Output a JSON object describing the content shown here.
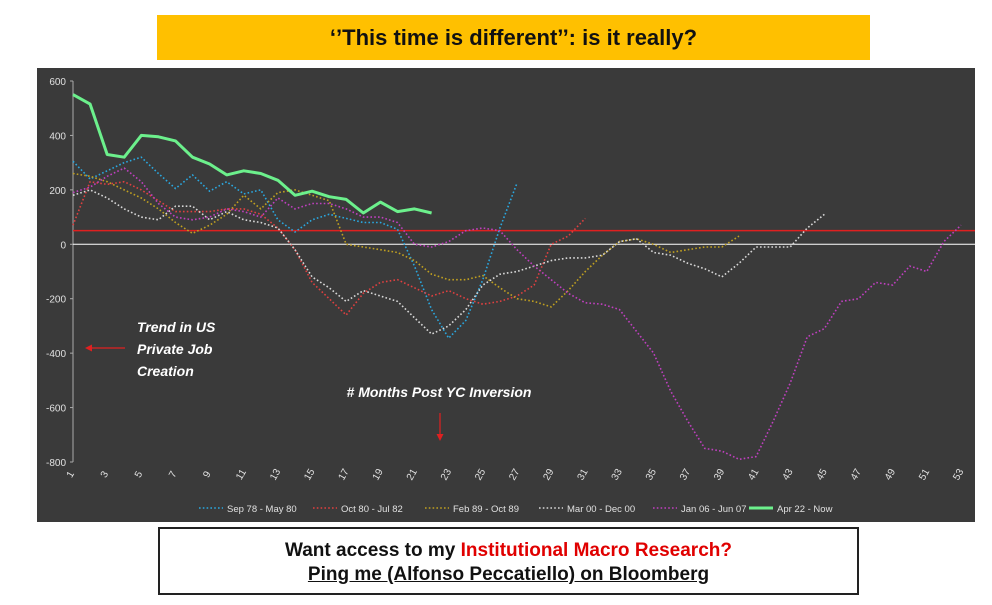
{
  "title": "‘’This time is different’’: is it really?",
  "cta": {
    "prefix": "Want access to my ",
    "highlight": "Institutional Macro Research?",
    "line2": "Ping me (Alfonso Peccatiello) on Bloomberg"
  },
  "colors": {
    "panel_bg": "#3a3a3a",
    "banner": "#ffc000",
    "zero_line": "#ffffff",
    "reference_line": "#e02020",
    "annotation_arrow": "#e02020",
    "highlight_text": "#e00000"
  },
  "chart_data": {
    "type": "line",
    "title": "",
    "xlabel": "",
    "ylabel": "",
    "ylim": [
      -800,
      600
    ],
    "xlim": [
      1,
      53
    ],
    "yticks": [
      600,
      400,
      200,
      0,
      -200,
      -400,
      -600,
      -800
    ],
    "xticks": [
      1,
      3,
      5,
      7,
      9,
      11,
      13,
      15,
      17,
      19,
      21,
      23,
      25,
      27,
      29,
      31,
      33,
      35,
      37,
      39,
      41,
      43,
      45,
      47,
      49,
      51,
      53
    ],
    "grid": false,
    "legend_position": "bottom",
    "reference_line": {
      "y": 50,
      "color": "#e02020"
    },
    "annotations": [
      {
        "text": "Trend in US Private Job Creation",
        "lines": [
          "Trend in US",
          "Private Job",
          "Creation"
        ]
      },
      {
        "text": "# Months Post YC Inversion"
      }
    ],
    "series": [
      {
        "name": "Sep 78 - May 80",
        "color": "#2aa8e0",
        "style": "dotted",
        "x": [
          1,
          2,
          3,
          4,
          5,
          6,
          7,
          8,
          9,
          10,
          11,
          12,
          13,
          14,
          15,
          16,
          17,
          18,
          19,
          20,
          21,
          22,
          23,
          24,
          25,
          26,
          27
        ],
        "values": [
          305,
          240,
          270,
          300,
          320,
          260,
          205,
          255,
          195,
          230,
          185,
          200,
          90,
          45,
          90,
          110,
          95,
          80,
          80,
          55,
          -80,
          -240,
          -345,
          -280,
          -130,
          60,
          225
        ]
      },
      {
        "name": "Oct 80 - Jul 82",
        "color": "#e04040",
        "style": "dotted",
        "x": [
          1,
          2,
          3,
          4,
          5,
          6,
          7,
          8,
          9,
          10,
          11,
          12,
          13,
          14,
          15,
          16,
          17,
          18,
          19,
          20,
          21,
          22,
          23,
          24,
          25,
          26,
          27,
          28,
          29,
          30,
          31
        ],
        "values": [
          70,
          230,
          220,
          230,
          200,
          160,
          120,
          120,
          120,
          130,
          130,
          110,
          60,
          -20,
          -140,
          -200,
          -260,
          -180,
          -140,
          -130,
          -160,
          -190,
          -170,
          -200,
          -220,
          -210,
          -190,
          -150,
          0,
          30,
          95
        ]
      },
      {
        "name": "Feb 89 - Oct 89",
        "color": "#c0a020",
        "style": "dotted",
        "x": [
          1,
          2,
          3,
          4,
          5,
          6,
          7,
          8,
          9,
          10,
          11,
          12,
          13,
          14,
          15,
          16,
          17,
          18,
          19,
          20,
          21,
          22,
          23,
          24,
          25,
          26,
          27,
          28,
          29,
          30,
          31,
          32,
          33,
          34,
          35,
          36,
          37,
          38,
          39,
          40
        ],
        "values": [
          260,
          250,
          230,
          200,
          170,
          130,
          80,
          40,
          70,
          110,
          180,
          130,
          190,
          200,
          180,
          160,
          0,
          -10,
          -20,
          -30,
          -60,
          -110,
          -130,
          -130,
          -115,
          -160,
          -200,
          -210,
          -230,
          -170,
          -100,
          -40,
          10,
          20,
          0,
          -30,
          -20,
          -10,
          -10,
          30
        ]
      },
      {
        "name": "Mar 00 - Dec 00",
        "color": "#d8d8d8",
        "style": "dotted",
        "x": [
          1,
          2,
          3,
          4,
          5,
          6,
          7,
          8,
          9,
          10,
          11,
          12,
          13,
          14,
          15,
          16,
          17,
          18,
          19,
          20,
          21,
          22,
          23,
          24,
          25,
          26,
          27,
          28,
          29,
          30,
          31,
          32,
          33,
          34,
          35,
          36,
          37,
          38,
          39,
          40,
          41,
          42,
          43,
          44,
          45
        ],
        "values": [
          180,
          200,
          170,
          130,
          100,
          90,
          140,
          140,
          90,
          120,
          90,
          80,
          60,
          -20,
          -120,
          -160,
          -210,
          -170,
          -190,
          -210,
          -270,
          -330,
          -300,
          -240,
          -150,
          -110,
          -100,
          -80,
          -60,
          -50,
          -50,
          -40,
          10,
          20,
          -30,
          -40,
          -70,
          -90,
          -120,
          -70,
          -10,
          -10,
          -10,
          60,
          110
        ]
      },
      {
        "name": "Jan 06 - Jun 07",
        "color": "#c040c0",
        "style": "dotted",
        "x": [
          1,
          2,
          3,
          4,
          5,
          6,
          7,
          8,
          9,
          10,
          11,
          12,
          13,
          14,
          15,
          16,
          17,
          18,
          19,
          20,
          21,
          22,
          23,
          24,
          25,
          26,
          27,
          28,
          29,
          30,
          31,
          32,
          33,
          34,
          35,
          36,
          37,
          38,
          39,
          40,
          41,
          42,
          43,
          44,
          45,
          46,
          47,
          48,
          49,
          50,
          51,
          52,
          53
        ],
        "values": [
          190,
          210,
          250,
          280,
          230,
          150,
          100,
          90,
          100,
          130,
          120,
          100,
          170,
          130,
          150,
          150,
          130,
          100,
          100,
          80,
          0,
          -10,
          10,
          50,
          60,
          50,
          -20,
          -80,
          -130,
          -180,
          -215,
          -220,
          -240,
          -320,
          -400,
          -540,
          -650,
          -750,
          -760,
          -790,
          -780,
          -650,
          -510,
          -340,
          -310,
          -210,
          -200,
          -140,
          -150,
          -80,
          -100,
          10,
          70
        ]
      },
      {
        "name": "Apr 22 - Now",
        "color": "#6cf08c",
        "style": "solid",
        "x": [
          1,
          2,
          3,
          4,
          5,
          6,
          7,
          8,
          9,
          10,
          11,
          12,
          13,
          14,
          15,
          16,
          17,
          18,
          19,
          20,
          21,
          22
        ],
        "values": [
          550,
          515,
          330,
          320,
          400,
          395,
          380,
          320,
          295,
          255,
          270,
          260,
          235,
          180,
          195,
          175,
          165,
          115,
          155,
          120,
          130,
          115
        ]
      }
    ]
  }
}
